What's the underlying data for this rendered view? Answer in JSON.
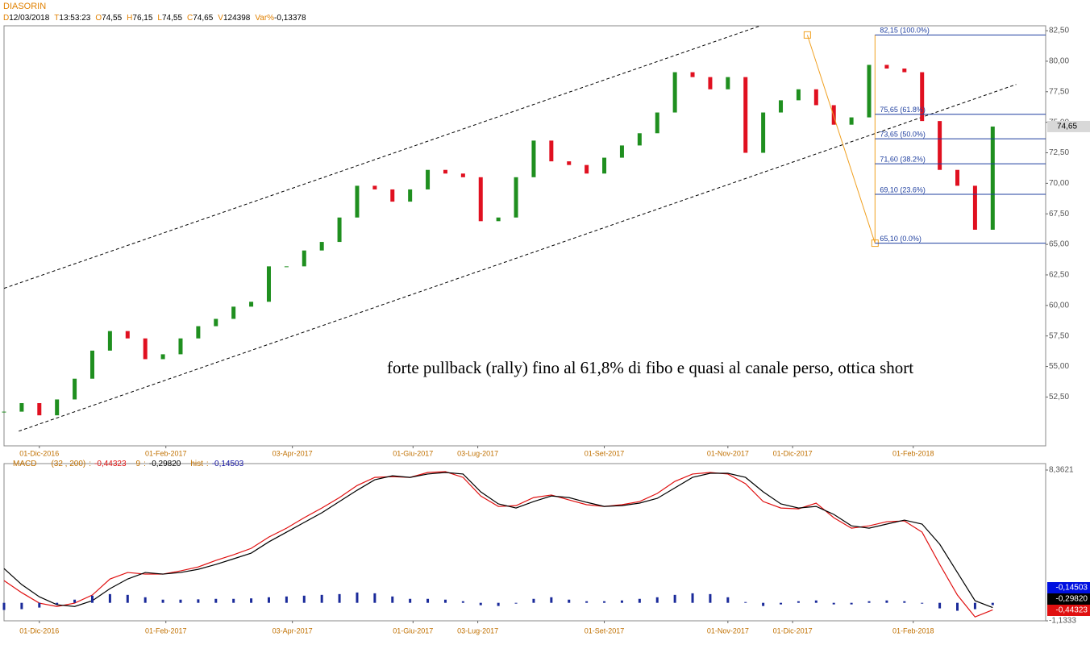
{
  "chart_data": [
    {
      "type": "candlestick",
      "title": "DIASORIN",
      "header": [
        {
          "key": "D",
          "value": "12/03/2018"
        },
        {
          "key": "T",
          "value": "13:53:23"
        },
        {
          "key": "O",
          "value": "74,55"
        },
        {
          "key": "H",
          "value": "76,15"
        },
        {
          "key": "L",
          "value": "74,55"
        },
        {
          "key": "C",
          "value": "74,65"
        },
        {
          "key": "V",
          "value": "124398"
        },
        {
          "key": "Var%",
          "value": "-0,13378"
        }
      ],
      "x": [
        0,
        6,
        12,
        18,
        24,
        30,
        36,
        42,
        48,
        54,
        60,
        66,
        72,
        78,
        84,
        90,
        96,
        102,
        108,
        114,
        120,
        126,
        132,
        138,
        144,
        150,
        156,
        162,
        168,
        174,
        180,
        186,
        192,
        198,
        204,
        210,
        216,
        222,
        228,
        234,
        240,
        246,
        252,
        258,
        264,
        270,
        276,
        282,
        288,
        294,
        300,
        306,
        312,
        318,
        324,
        330,
        336
      ],
      "values": [
        51.3,
        52.0,
        51.0,
        52.3,
        54.0,
        56.3,
        57.9,
        57.3,
        55.6,
        56.0,
        57.3,
        58.3,
        58.9,
        59.9,
        60.3,
        63.2,
        63.2,
        64.5,
        65.2,
        67.2,
        69.8,
        69.5,
        68.5,
        69.5,
        71.1,
        70.8,
        70.5,
        66.9,
        67.2,
        70.5,
        73.5,
        71.8,
        71.5,
        70.8,
        72.1,
        73.1,
        74.1,
        75.8,
        79.1,
        78.7,
        77.7,
        78.7,
        72.5,
        75.8,
        76.8,
        77.7,
        76.4,
        74.8,
        75.4,
        79.7,
        79.4,
        79.1,
        75.1,
        71.1,
        69.8,
        66.2,
        74.65
      ],
      "up_color": "#1f8f1f",
      "down_color": "#e01020",
      "xlim": [
        0,
        354
      ],
      "xticks": [
        {
          "value": 12,
          "label": "01-Dic-2016"
        },
        {
          "value": 55,
          "label": "01-Feb-2017"
        },
        {
          "value": 98,
          "label": "03-Apr-2017"
        },
        {
          "value": 139,
          "label": "01-Giu-2017"
        },
        {
          "value": 161,
          "label": "03-Lug-2017"
        },
        {
          "value": 204,
          "label": "01-Set-2017"
        },
        {
          "value": 246,
          "label": "01-Nov-2017"
        },
        {
          "value": 268,
          "label": "01-Dic-2017"
        },
        {
          "value": 309,
          "label": "01-Feb-2018"
        }
      ],
      "ylim": [
        48.5,
        82.9
      ],
      "yticks": [
        {
          "value": 52.5,
          "label": "52,50"
        },
        {
          "value": 55,
          "label": "55,00"
        },
        {
          "value": 57.5,
          "label": "57,50"
        },
        {
          "value": 60,
          "label": "60,00"
        },
        {
          "value": 62.5,
          "label": "62,50"
        },
        {
          "value": 65,
          "label": "65,00"
        },
        {
          "value": 67.5,
          "label": "67,50"
        },
        {
          "value": 70,
          "label": "70,00"
        },
        {
          "value": 72.5,
          "label": "72,50"
        },
        {
          "value": 75,
          "label": "75,00"
        },
        {
          "value": 77.5,
          "label": "77,50"
        },
        {
          "value": 80,
          "label": "80,00"
        },
        {
          "value": 82.5,
          "label": "82,50"
        }
      ],
      "last_price": {
        "value": 74.65,
        "label": "74,65"
      },
      "channel": [
        {
          "x": [
            0,
            257
          ],
          "y": [
            61.4,
            82.9
          ]
        },
        {
          "x": [
            5,
            344
          ],
          "y": [
            49.7,
            78.1
          ]
        }
      ],
      "fibonacci": {
        "color": "#f0a020",
        "line_color": "#1f3f9f",
        "x": [
          273,
          296
        ],
        "y": [
          82.15,
          65.1
        ],
        "levels": [
          {
            "value": 82.15,
            "label": "82,15 (100.0%)"
          },
          {
            "value": 75.65,
            "label": "75,65 (61.8%)"
          },
          {
            "value": 73.65,
            "label": "73,65 (50.0%)"
          },
          {
            "value": 71.6,
            "label": "71,60 (38.2%)"
          },
          {
            "value": 69.1,
            "label": "69,10 (23.6%)"
          },
          {
            "value": 65.1,
            "label": "65,10 (0.0%)"
          }
        ]
      },
      "annotation": "forte pullback (rally) fino al 61,8% di fibo e quasi al canale perso, ottica short"
    },
    {
      "type": "line",
      "title": "MACD",
      "separator": ":",
      "x": [
        0,
        6,
        12,
        18,
        24,
        30,
        36,
        42,
        48,
        54,
        60,
        66,
        72,
        78,
        84,
        90,
        96,
        102,
        108,
        114,
        120,
        126,
        132,
        138,
        144,
        150,
        156,
        162,
        168,
        174,
        180,
        186,
        192,
        198,
        204,
        210,
        216,
        222,
        228,
        234,
        240,
        246,
        252,
        258,
        264,
        270,
        276,
        282,
        288,
        294,
        300,
        306,
        312,
        318,
        324,
        330,
        336
      ],
      "xlim": [
        0,
        354
      ],
      "xticks": [
        {
          "value": 12,
          "label": "01-Dic-2016"
        },
        {
          "value": 55,
          "label": "01-Feb-2017"
        },
        {
          "value": 98,
          "label": "03-Apr-2017"
        },
        {
          "value": 139,
          "label": "01-Giu-2017"
        },
        {
          "value": 161,
          "label": "03-Lug-2017"
        },
        {
          "value": 204,
          "label": "01-Set-2017"
        },
        {
          "value": 246,
          "label": "01-Nov-2017"
        },
        {
          "value": 268,
          "label": "01-Dic-2017"
        },
        {
          "value": 309,
          "label": "01-Feb-2018"
        }
      ],
      "ylim": [
        -1.1333,
        8.3621
      ],
      "yticks": [
        {
          "value": 8.3621,
          "label": "8,3621"
        },
        {
          "value": -1.1333,
          "label": "-1,1333"
        }
      ],
      "series": [
        {
          "name": "(32 , 200)",
          "color": "#e01010",
          "last_label": "-0,44323",
          "values": [
            1.4,
            0.64,
            -0.02,
            -0.23,
            -0.02,
            0.49,
            1.5,
            1.91,
            1.81,
            1.81,
            2.01,
            2.26,
            2.67,
            3.03,
            3.43,
            4.14,
            4.7,
            5.36,
            5.97,
            6.63,
            7.39,
            7.9,
            7.95,
            7.9,
            8.21,
            8.26,
            7.9,
            6.73,
            6.07,
            6.12,
            6.63,
            6.79,
            6.48,
            6.18,
            6.07,
            6.18,
            6.38,
            6.89,
            7.65,
            8.11,
            8.21,
            8.11,
            7.5,
            6.38,
            5.97,
            5.92,
            6.28,
            5.36,
            4.7,
            4.85,
            5.11,
            5.16,
            4.45,
            2.42,
            0.49,
            -0.89,
            -0.44323
          ]
        },
        {
          "name": "9",
          "color": "#000000",
          "last_label": "-0,29820",
          "values": [
            2.16,
            1.15,
            0.38,
            -0.12,
            -0.23,
            0.13,
            0.89,
            1.5,
            1.91,
            1.81,
            1.91,
            2.11,
            2.42,
            2.77,
            3.13,
            3.84,
            4.45,
            5.06,
            5.67,
            6.38,
            7.09,
            7.75,
            8.0,
            7.9,
            8.11,
            8.21,
            8.11,
            6.99,
            6.23,
            5.97,
            6.38,
            6.73,
            6.63,
            6.33,
            6.07,
            6.12,
            6.28,
            6.58,
            7.24,
            7.9,
            8.16,
            8.16,
            7.9,
            6.99,
            6.23,
            5.97,
            6.07,
            5.57,
            4.85,
            4.7,
            4.96,
            5.21,
            4.96,
            3.69,
            1.91,
            0.13,
            -0.2982
          ]
        },
        {
          "name": "hist",
          "color": "#1a2a9a",
          "last_label": "-0,14503",
          "values": [
            -0.45,
            -0.4,
            -0.3,
            -0.1,
            0.2,
            0.45,
            0.55,
            0.5,
            0.35,
            0.2,
            0.2,
            0.22,
            0.25,
            0.25,
            0.28,
            0.35,
            0.4,
            0.45,
            0.5,
            0.55,
            0.65,
            0.6,
            0.4,
            0.25,
            0.25,
            0.2,
            0.1,
            -0.15,
            -0.2,
            -0.05,
            0.25,
            0.35,
            0.2,
            0.1,
            0.1,
            0.15,
            0.25,
            0.35,
            0.5,
            0.6,
            0.55,
            0.35,
            0.05,
            -0.2,
            -0.1,
            0.1,
            0.15,
            -0.1,
            -0.1,
            0.1,
            0.15,
            0.1,
            -0.05,
            -0.35,
            -0.5,
            -0.4,
            -0.14503
          ]
        }
      ]
    }
  ]
}
